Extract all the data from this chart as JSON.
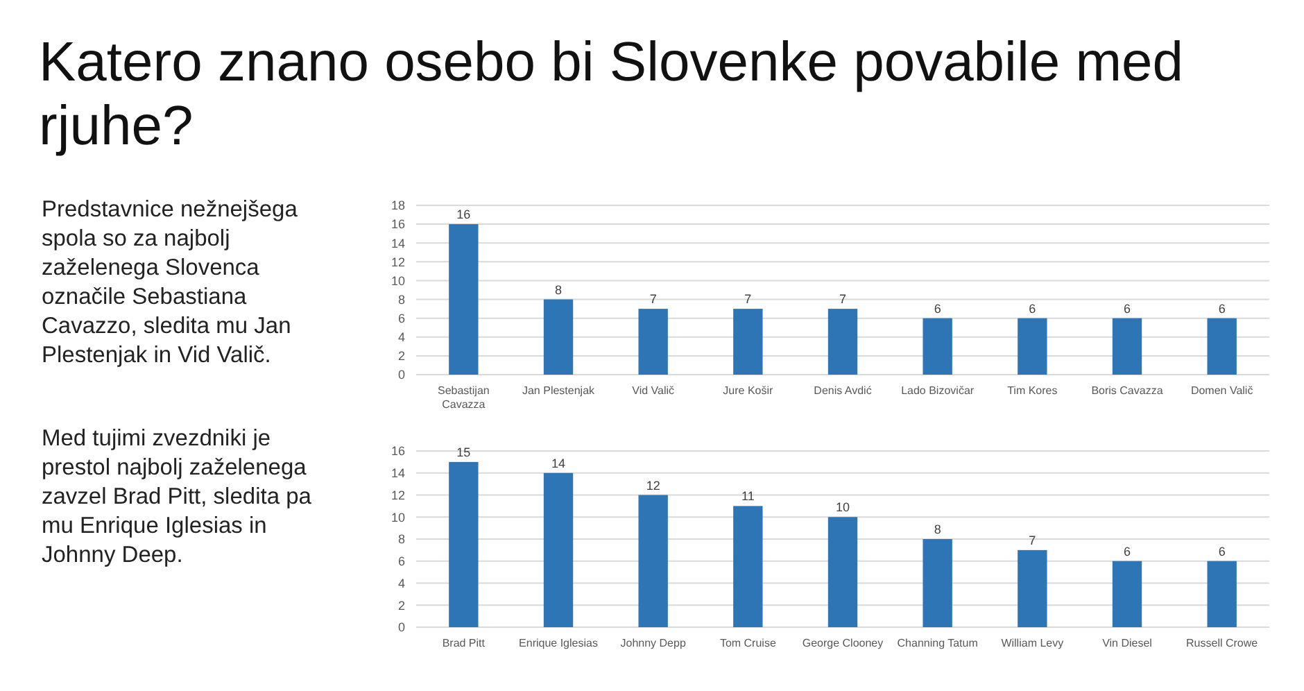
{
  "chart_data": [
    {
      "type": "bar",
      "title": "Katero znano osebo bi Slovenke povabile med rjuhe?",
      "annotations": [
        "Predstavnice nežnejšega spola so za najbolj zaželenega Slovenca označile Sebastiana Cavazzo, sledita mu Jan Plestenjak in Vid Valič."
      ],
      "categories": [
        "Sebastijan Cavazza",
        "Jan Plestenjak",
        "Vid Valič",
        "Jure Košir",
        "Denis Avdić",
        "Lado Bizovičar",
        "Tim Kores",
        "Boris Cavazza",
        "Domen Valič"
      ],
      "values": [
        16,
        8,
        7,
        7,
        7,
        6,
        6,
        6,
        6
      ],
      "color": "#2e75b6",
      "ylim": [
        0,
        18
      ],
      "yticks": [
        0,
        2,
        4,
        6,
        8,
        10,
        12,
        14,
        16,
        18
      ],
      "grid": "y",
      "data_labels": true
    },
    {
      "type": "bar",
      "annotations": [
        "Med tujimi zvezdniki je prestol najbolj zaželenega zavzel Brad Pitt, sledita pa mu Enrique Iglesias in Johnny Deep."
      ],
      "categories": [
        "Brad Pitt",
        "Enrique Iglesias",
        "Johnny Depp",
        "Tom Cruise",
        "George Clooney",
        "Channing Tatum",
        "William Levy",
        "Vin Diesel",
        "Russell Crowe"
      ],
      "values": [
        15,
        14,
        12,
        11,
        10,
        8,
        7,
        6,
        6
      ],
      "color": "#2e75b6",
      "ylim": [
        0,
        16
      ],
      "yticks": [
        0,
        2,
        4,
        6,
        8,
        10,
        12,
        14,
        16
      ],
      "grid": "y",
      "data_labels": true
    }
  ]
}
